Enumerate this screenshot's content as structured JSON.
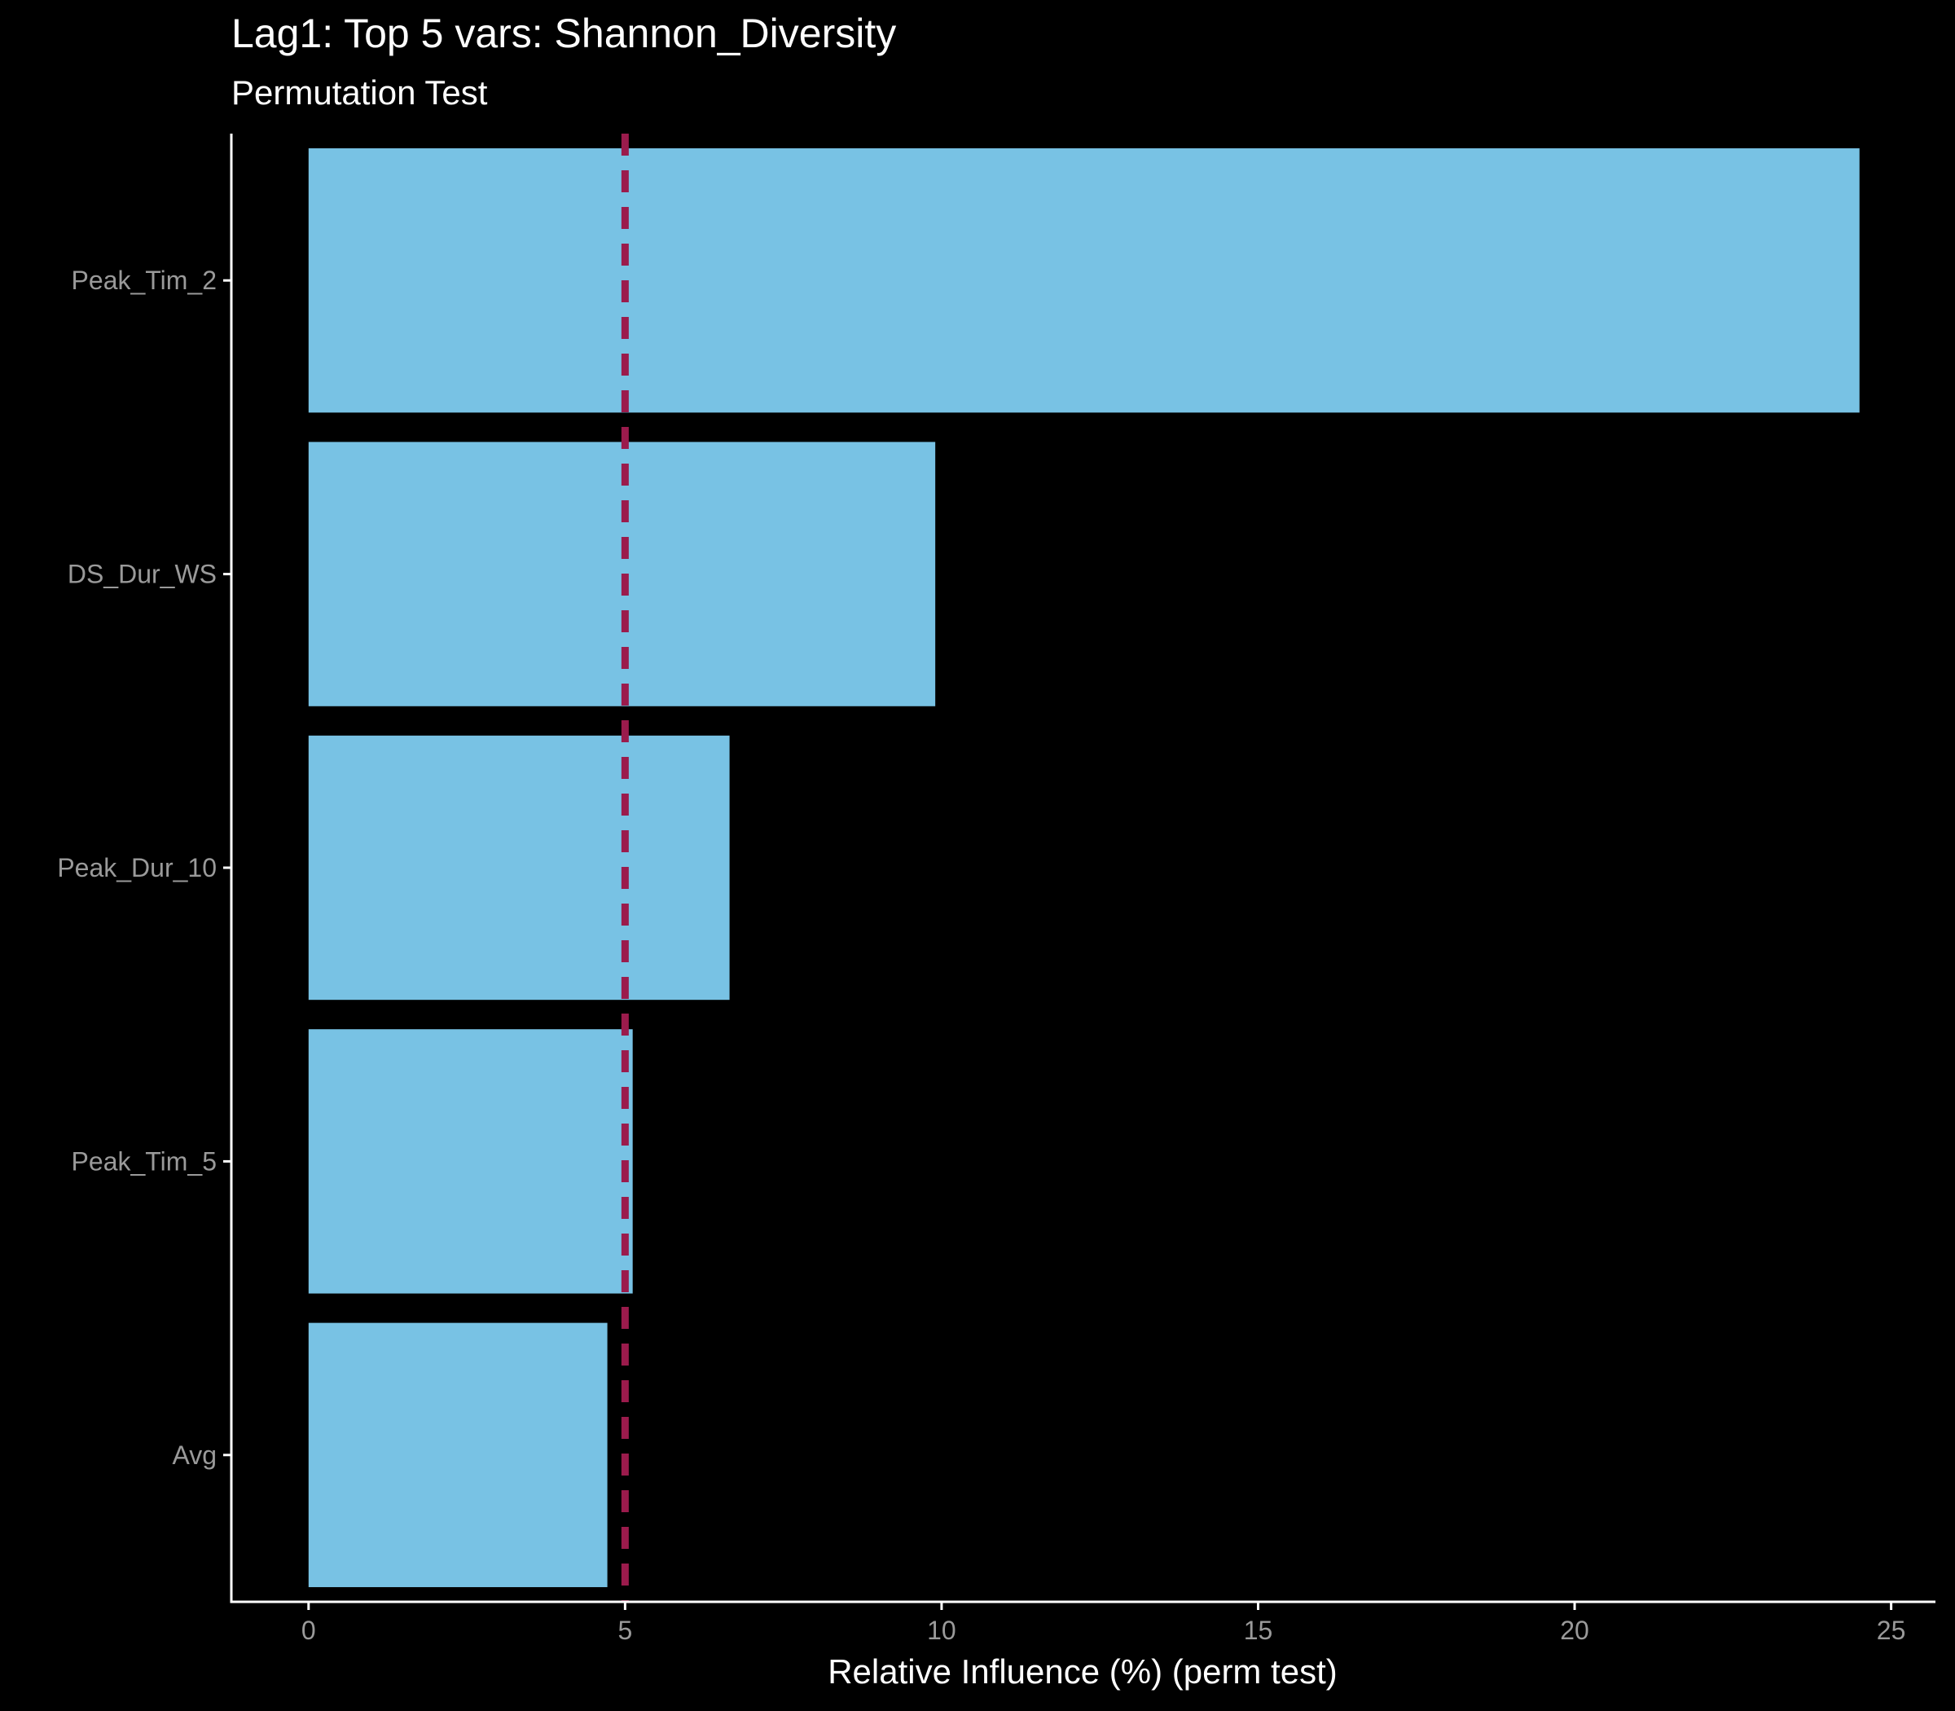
{
  "chart_data": {
    "type": "bar",
    "orientation": "horizontal",
    "title": "Lag1: Top 5 vars: Shannon_Diversity",
    "subtitle": "Permutation Test",
    "xlabel": "Relative Influence (%) (perm test)",
    "ylabel": "",
    "categories": [
      "Peak_Tim_2",
      "DS_Dur_WS",
      "Peak_Dur_10",
      "Peak_Tim_5",
      "Avg"
    ],
    "values": [
      24.5,
      9.9,
      6.65,
      5.12,
      4.72
    ],
    "xlim": [
      -1.22,
      25.7
    ],
    "xticks": [
      0,
      5,
      10,
      15,
      20,
      25
    ],
    "reference_line": {
      "x": 5,
      "style": "dashed",
      "color": "#9b1b4c"
    },
    "bar_color": "#78c2e4",
    "background": "#000000",
    "grid": false,
    "legend": "none"
  }
}
